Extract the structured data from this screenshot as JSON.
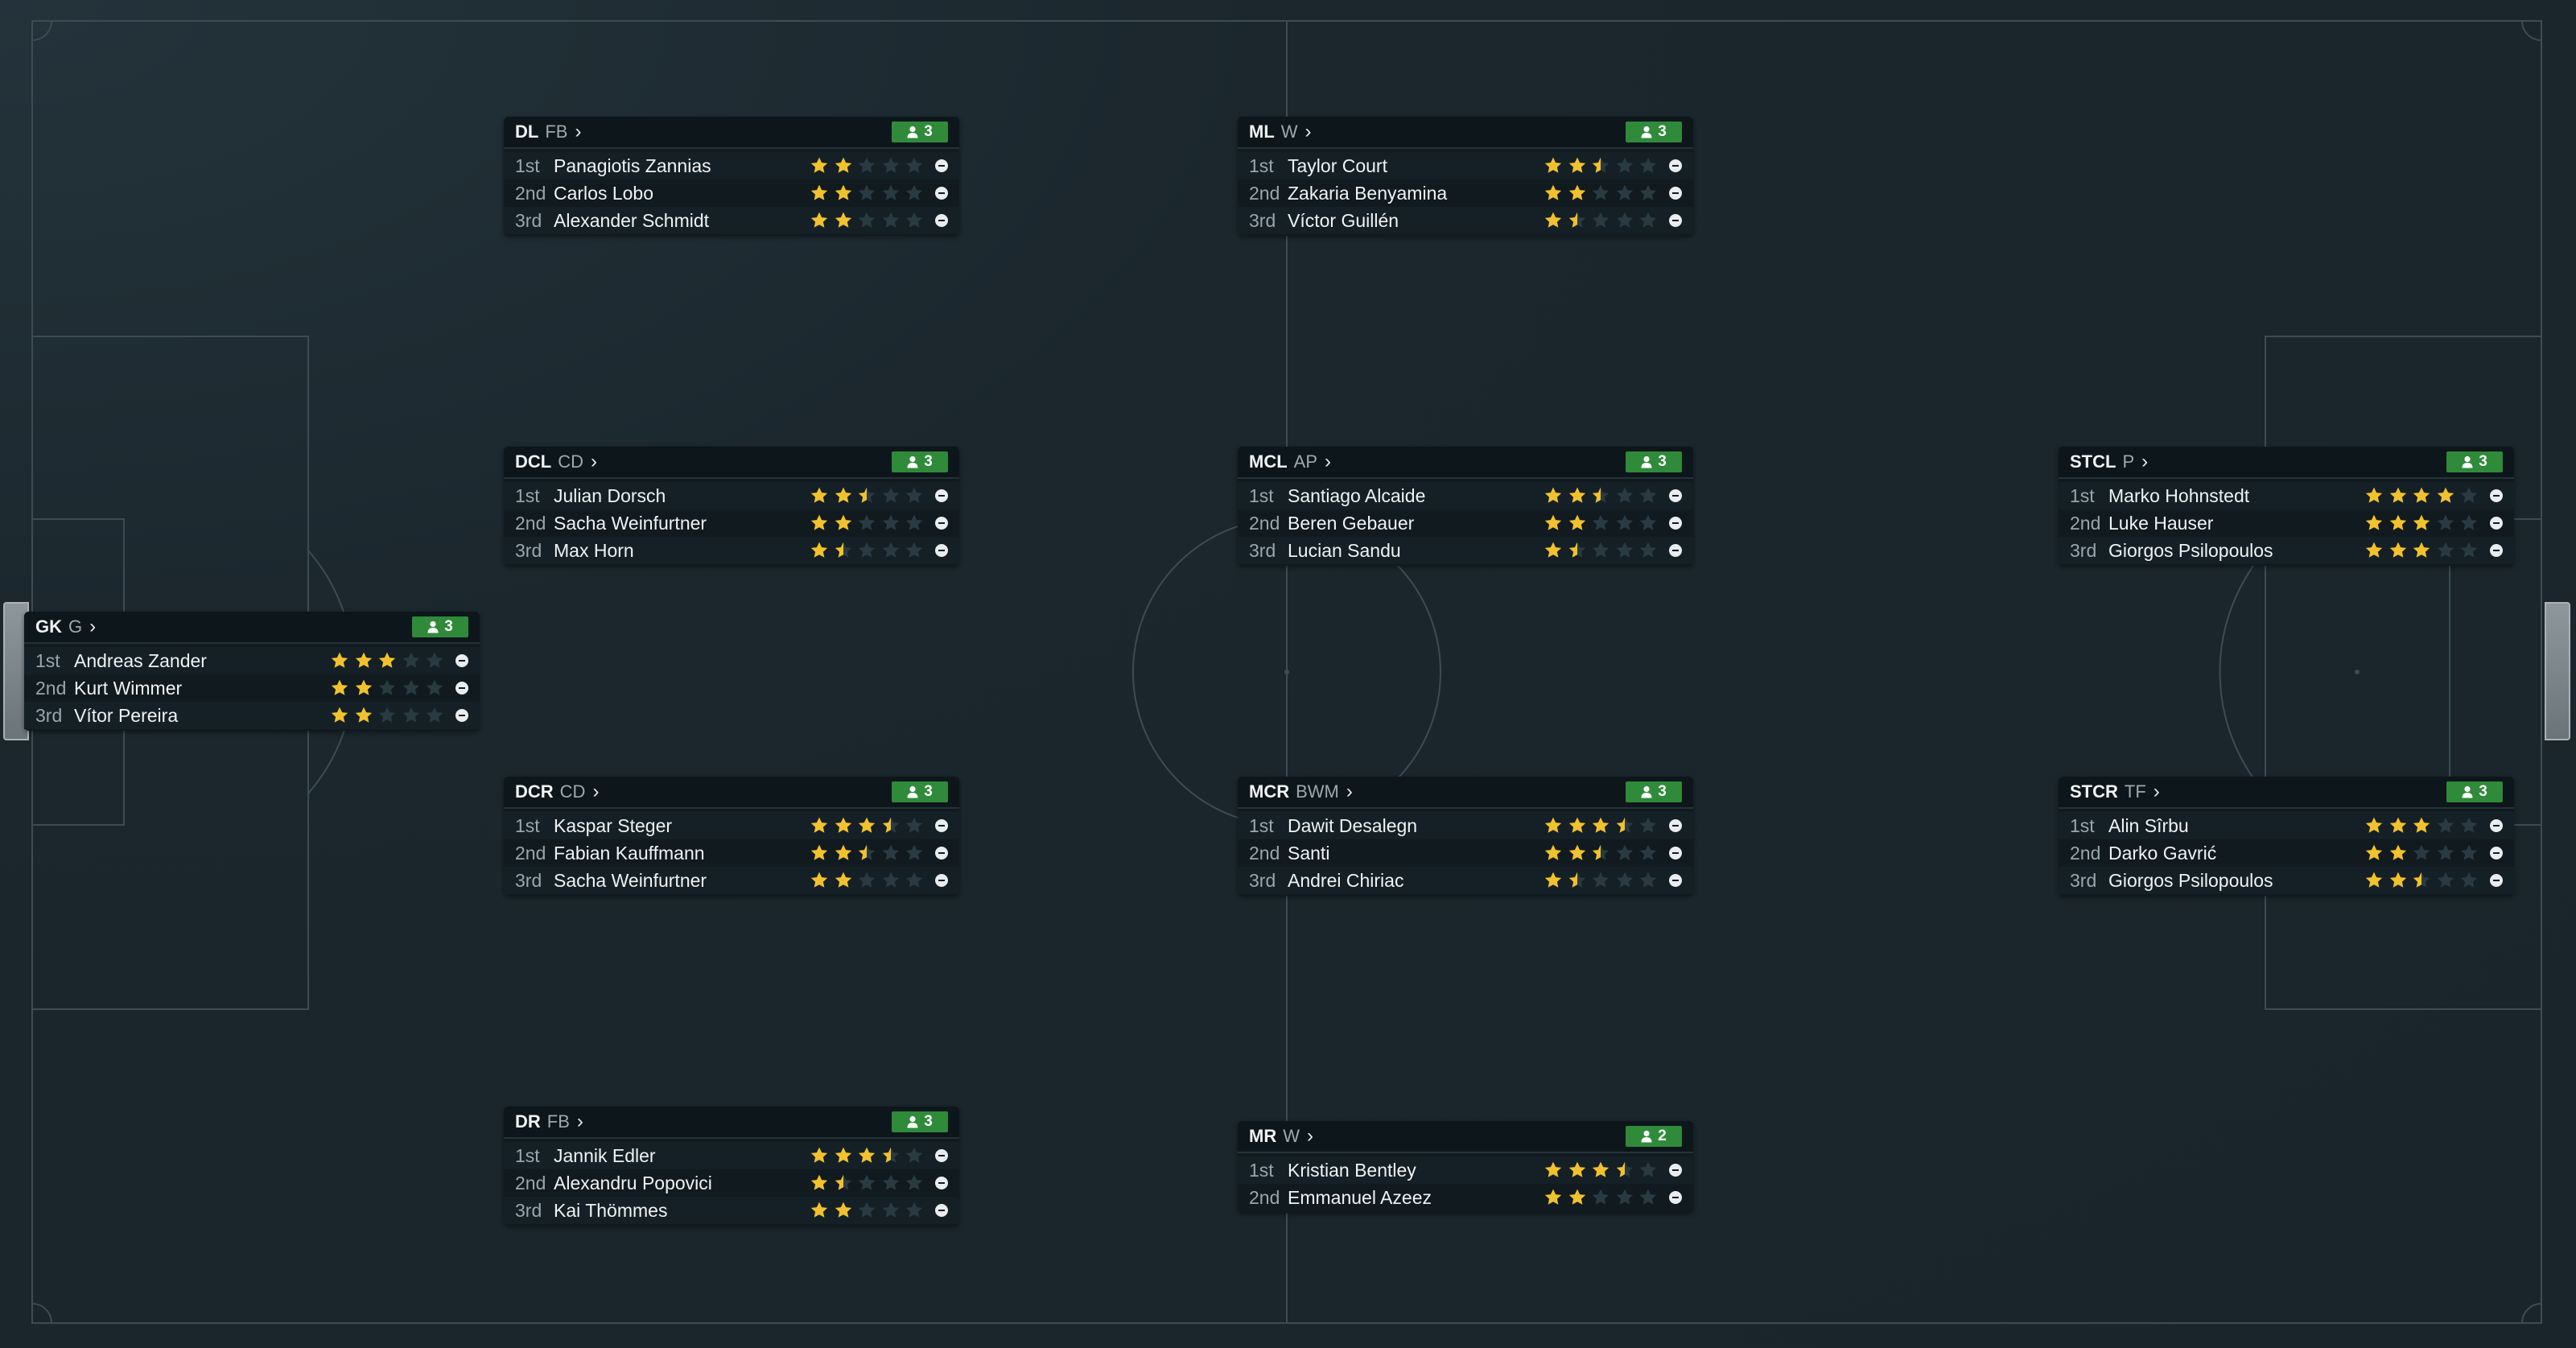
{
  "colors": {
    "star_full": "#f2c12e",
    "star_empty": "#2a3a42",
    "badge": "#2f8a3a"
  },
  "positions": [
    {
      "id": "dl",
      "code": "DL",
      "role": "FB",
      "count": "3",
      "players": [
        {
          "rank": "1st",
          "name": "Panagiotis Zannias",
          "stars": 2
        },
        {
          "rank": "2nd",
          "name": "Carlos Lobo",
          "stars": 2
        },
        {
          "rank": "3rd",
          "name": "Alexander Schmidt",
          "stars": 2
        }
      ]
    },
    {
      "id": "ml",
      "code": "ML",
      "role": "W",
      "count": "3",
      "players": [
        {
          "rank": "1st",
          "name": "Taylor Court",
          "stars": 2.5
        },
        {
          "rank": "2nd",
          "name": "Zakaria Benyamina",
          "stars": 2
        },
        {
          "rank": "3rd",
          "name": "Víctor Guillén",
          "stars": 1.5
        }
      ]
    },
    {
      "id": "dcl",
      "code": "DCL",
      "role": "CD",
      "count": "3",
      "players": [
        {
          "rank": "1st",
          "name": "Julian Dorsch",
          "stars": 2.5
        },
        {
          "rank": "2nd",
          "name": "Sacha Weinfurtner",
          "stars": 2
        },
        {
          "rank": "3rd",
          "name": "Max Horn",
          "stars": 1.5
        }
      ]
    },
    {
      "id": "mcl",
      "code": "MCL",
      "role": "AP",
      "count": "3",
      "players": [
        {
          "rank": "1st",
          "name": "Santiago Alcaide",
          "stars": 2.5
        },
        {
          "rank": "2nd",
          "name": "Beren Gebauer",
          "stars": 2
        },
        {
          "rank": "3rd",
          "name": "Lucian Sandu",
          "stars": 1.5
        }
      ]
    },
    {
      "id": "stcl",
      "code": "STCL",
      "role": "P",
      "count": "3",
      "players": [
        {
          "rank": "1st",
          "name": "Marko Hohnstedt",
          "stars": 4
        },
        {
          "rank": "2nd",
          "name": "Luke Hauser",
          "stars": 3
        },
        {
          "rank": "3rd",
          "name": "Giorgos Psilopoulos",
          "stars": 3
        }
      ]
    },
    {
      "id": "gk",
      "code": "GK",
      "role": "G",
      "count": "3",
      "players": [
        {
          "rank": "1st",
          "name": "Andreas Zander",
          "stars": 3
        },
        {
          "rank": "2nd",
          "name": "Kurt Wimmer",
          "stars": 2
        },
        {
          "rank": "3rd",
          "name": "Vítor Pereira",
          "stars": 2
        }
      ]
    },
    {
      "id": "dcr",
      "code": "DCR",
      "role": "CD",
      "count": "3",
      "players": [
        {
          "rank": "1st",
          "name": "Kaspar Steger",
          "stars": 3.5
        },
        {
          "rank": "2nd",
          "name": "Fabian Kauffmann",
          "stars": 2.5
        },
        {
          "rank": "3rd",
          "name": "Sacha Weinfurtner",
          "stars": 2
        }
      ]
    },
    {
      "id": "mcr",
      "code": "MCR",
      "role": "BWM",
      "count": "3",
      "players": [
        {
          "rank": "1st",
          "name": "Dawit Desalegn",
          "stars": 3.5
        },
        {
          "rank": "2nd",
          "name": "Santi",
          "stars": 2.5
        },
        {
          "rank": "3rd",
          "name": "Andrei Chiriac",
          "stars": 1.5
        }
      ]
    },
    {
      "id": "stcr",
      "code": "STCR",
      "role": "TF",
      "count": "3",
      "players": [
        {
          "rank": "1st",
          "name": "Alin Sîrbu",
          "stars": 3
        },
        {
          "rank": "2nd",
          "name": "Darko Gavrić",
          "stars": 2
        },
        {
          "rank": "3rd",
          "name": "Giorgos Psilopoulos",
          "stars": 2.5
        }
      ]
    },
    {
      "id": "dr",
      "code": "DR",
      "role": "FB",
      "count": "3",
      "players": [
        {
          "rank": "1st",
          "name": "Jannik Edler",
          "stars": 3.5
        },
        {
          "rank": "2nd",
          "name": "Alexandru Popovici",
          "stars": 1.5
        },
        {
          "rank": "3rd",
          "name": "Kai Thömmes",
          "stars": 2
        }
      ]
    },
    {
      "id": "mr",
      "code": "MR",
      "role": "W",
      "count": "2",
      "players": [
        {
          "rank": "1st",
          "name": "Kristian Bentley",
          "stars": 3.5
        },
        {
          "rank": "2nd",
          "name": "Emmanuel Azeez",
          "stars": 2
        }
      ]
    }
  ]
}
